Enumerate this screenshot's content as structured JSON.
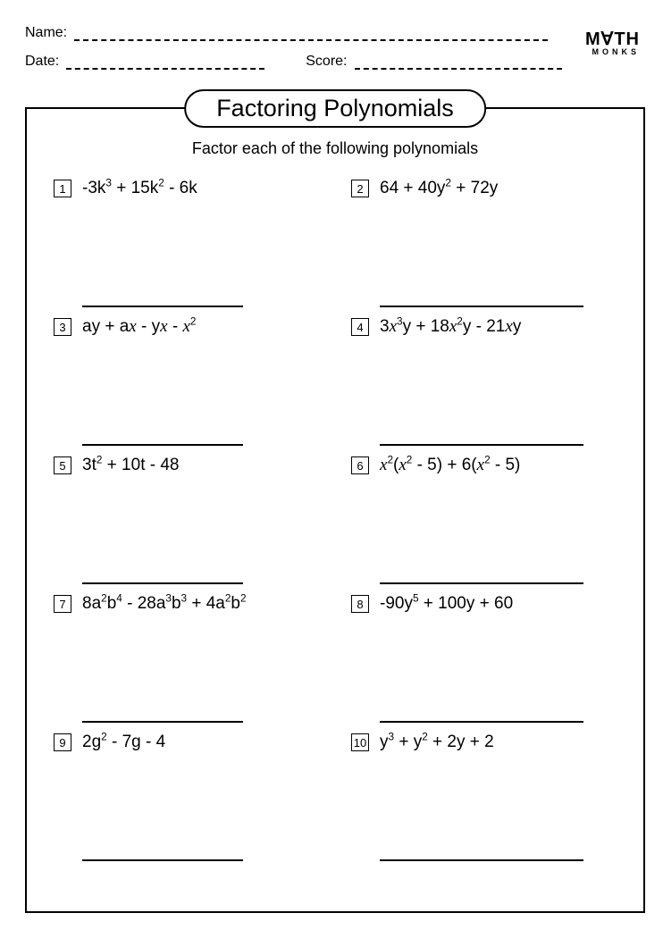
{
  "header": {
    "name_label": "Name:",
    "date_label": "Date:",
    "score_label": "Score:",
    "logo_top": "M∀TH",
    "logo_bottom": "MONKS"
  },
  "worksheet": {
    "title": "Factoring Polynomials",
    "instruction": "Factor each of the following polynomials",
    "title_fontsize": 27,
    "instruction_fontsize": 18,
    "problem_fontsize": 19,
    "border_color": "#000000",
    "background_color": "#ffffff",
    "text_color": "#000000",
    "grid": {
      "columns": 2,
      "rows": 5
    },
    "problems": [
      {
        "num": "1",
        "html": "-3k<sup>3</sup> + 15k<sup>2</sup> - 6k"
      },
      {
        "num": "2",
        "html": "64 + 40y<sup>2</sup> + 72y"
      },
      {
        "num": "3",
        "html": "ay + a<span class=\"ital\">x</span> - y<span class=\"ital\">x</span> - <span class=\"ital\">x</span><sup>2</sup>"
      },
      {
        "num": "4",
        "html": "3<span class=\"ital\">x</span><sup>3</sup>y + 18<span class=\"ital\">x</span><sup>2</sup>y - 21<span class=\"ital\">x</span>y"
      },
      {
        "num": "5",
        "html": "3t<sup>2</sup> + 10t - 48"
      },
      {
        "num": "6",
        "html": "<span class=\"ital\">x</span><sup>2</sup>(<span class=\"ital\">x</span><sup>2</sup> - 5) + 6(<span class=\"ital\">x</span><sup>2</sup> - 5)"
      },
      {
        "num": "7",
        "html": "8a<sup>2</sup>b<sup>4</sup> - 28a<sup>3</sup>b<sup>3</sup> + 4a<sup>2</sup>b<sup>2</sup>"
      },
      {
        "num": "8",
        "html": "-90y<sup>5</sup> + 100y + 60"
      },
      {
        "num": "9",
        "html": "2g<sup>2</sup> - 7g - 4"
      },
      {
        "num": "10",
        "html": "y<sup>3</sup> + y<sup>2</sup> + 2y + 2"
      }
    ]
  }
}
